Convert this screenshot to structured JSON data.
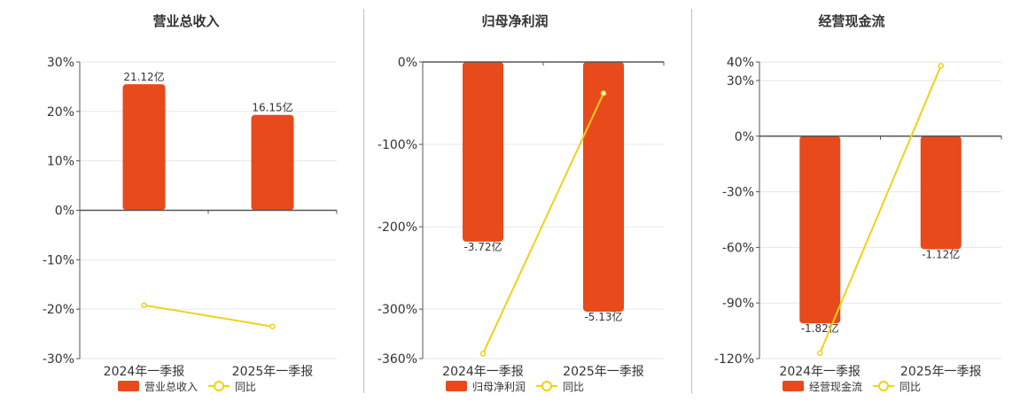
{
  "colors": {
    "bar": "#e84a1b",
    "line": "#f2d01a",
    "axis": "#555555",
    "grid": "#e6e6e6",
    "text": "#333333"
  },
  "chart_data": [
    {
      "type": "bar",
      "title": "营业总收入",
      "categories": [
        "2024年一季报",
        "2025年一季报"
      ],
      "ylim": [
        -30,
        30
      ],
      "yticks": [
        30,
        20,
        10,
        0,
        -10,
        -20,
        -30
      ],
      "ytick_labels": [
        "30%",
        "20%",
        "10%",
        "0%",
        "-10%",
        "-20%",
        "-30%"
      ],
      "series": [
        {
          "name": "营业总收入",
          "kind": "bar",
          "values": [
            25.5,
            19.3
          ],
          "labels": [
            "21.12亿",
            "16.15亿"
          ]
        },
        {
          "name": "同比",
          "kind": "line",
          "values": [
            -19.2,
            -23.5
          ]
        }
      ],
      "legend": "bottom-center"
    },
    {
      "type": "bar",
      "title": "归母净利润",
      "categories": [
        "2024年一季报",
        "2025年一季报"
      ],
      "ylim": [
        -360,
        0
      ],
      "yticks": [
        0,
        -100,
        -200,
        -300,
        -360
      ],
      "ytick_labels": [
        "0%",
        "-100%",
        "-200%",
        "-300%",
        "-360%"
      ],
      "series": [
        {
          "name": "归母净利润",
          "kind": "bar",
          "values": [
            -218,
            -303
          ],
          "labels": [
            "-3.72亿",
            "-5.13亿"
          ]
        },
        {
          "name": "同比",
          "kind": "line",
          "values": [
            -354,
            -38
          ]
        }
      ],
      "legend": "bottom-center"
    },
    {
      "type": "bar",
      "title": "经营现金流",
      "categories": [
        "2024年一季报",
        "2025年一季报"
      ],
      "ylim": [
        -120,
        40
      ],
      "yticks": [
        40,
        30,
        0,
        -30,
        -60,
        -90,
        -120
      ],
      "ytick_labels": [
        "40%",
        "30%",
        "0%",
        "-30%",
        "-60%",
        "-90%",
        "-120%"
      ],
      "series": [
        {
          "name": "经营现金流",
          "kind": "bar",
          "values": [
            -101,
            -61
          ],
          "labels": [
            "-1.82亿",
            "-1.12亿"
          ]
        },
        {
          "name": "同比",
          "kind": "line",
          "values": [
            -117,
            38
          ]
        }
      ],
      "legend": "bottom-center"
    }
  ]
}
